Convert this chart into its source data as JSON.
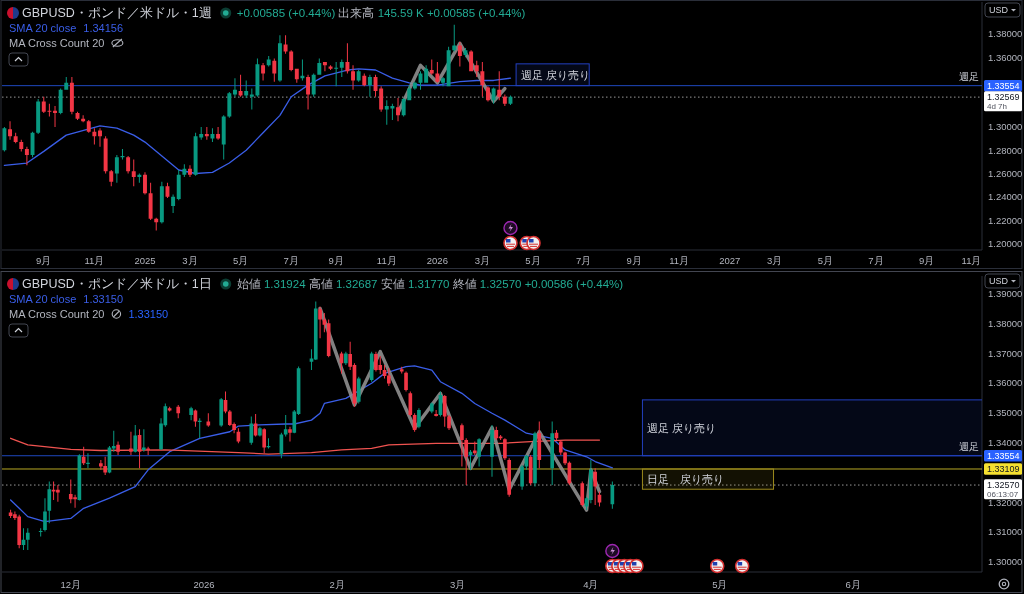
{
  "chart_data": [
    {
      "type": "candlestick",
      "title": "GBPUSD・ポンド／米ドル・1週",
      "subtitle": "+0.00585 (+0.44%) 出来高 145.59 K +0.00585 (+0.44%)",
      "x": [
        "2024-07-15",
        "2024-07-22",
        "2024-07-29",
        "2024-08-05",
        "2024-08-12",
        "2024-08-19",
        "2024-08-26",
        "2024-09-02",
        "2024-09-09",
        "2024-09-16",
        "2024-09-23",
        "2024-09-30",
        "2024-10-07",
        "2024-10-14",
        "2024-10-21",
        "2024-10-28",
        "2024-11-04",
        "2024-11-11",
        "2024-11-18",
        "2024-11-25",
        "2024-12-02",
        "2024-12-09",
        "2024-12-16",
        "2024-12-23",
        "2024-12-30",
        "2025-01-06",
        "2025-01-13",
        "2025-01-20",
        "2025-01-27",
        "2025-02-03",
        "2025-02-10",
        "2025-02-17",
        "2025-02-24",
        "2025-03-03",
        "2025-03-10",
        "2025-03-17",
        "2025-03-24",
        "2025-03-31",
        "2025-04-07",
        "2025-04-14",
        "2025-04-21",
        "2025-04-28",
        "2025-05-05",
        "2025-05-12",
        "2025-05-19",
        "2025-05-26",
        "2025-06-02",
        "2025-06-09",
        "2025-06-16",
        "2025-06-23",
        "2025-06-30",
        "2025-07-07",
        "2025-07-14",
        "2025-07-21",
        "2025-07-28",
        "2025-08-04",
        "2025-08-11",
        "2025-08-18",
        "2025-08-25",
        "2025-09-01",
        "2025-09-08",
        "2025-09-15",
        "2025-09-22",
        "2025-09-29",
        "2025-10-06",
        "2025-10-13",
        "2025-10-20",
        "2025-10-27",
        "2025-11-03",
        "2025-11-10",
        "2025-11-17",
        "2025-11-24",
        "2025-12-01",
        "2025-12-08",
        "2025-12-15",
        "2025-12-22",
        "2025-12-29",
        "2026-01-05",
        "2026-01-12",
        "2026-01-19",
        "2026-01-26",
        "2026-02-02",
        "2026-02-09",
        "2026-02-16",
        "2026-02-23",
        "2026-03-02",
        "2026-03-09",
        "2026-03-16",
        "2026-03-23",
        "2026-03-30",
        "2026-04-06"
      ],
      "ohlc": [
        [
          1.28,
          1.3,
          1.279,
          1.299
        ],
        [
          1.298,
          1.305,
          1.289,
          1.292
        ],
        [
          1.292,
          1.295,
          1.286,
          1.287
        ],
        [
          1.287,
          1.289,
          1.279,
          1.281
        ],
        [
          1.281,
          1.283,
          1.267,
          1.276
        ],
        [
          1.276,
          1.296,
          1.274,
          1.295
        ],
        [
          1.295,
          1.324,
          1.294,
          1.322
        ],
        [
          1.322,
          1.326,
          1.312,
          1.313
        ],
        [
          1.314,
          1.32,
          1.309,
          1.313
        ],
        [
          1.314,
          1.318,
          1.3,
          1.312
        ],
        [
          1.312,
          1.333,
          1.311,
          1.332
        ],
        [
          1.332,
          1.343,
          1.332,
          1.338
        ],
        [
          1.338,
          1.343,
          1.311,
          1.313
        ],
        [
          1.312,
          1.313,
          1.306,
          1.307
        ],
        [
          1.307,
          1.31,
          1.304,
          1.305
        ],
        [
          1.305,
          1.306,
          1.295,
          1.296
        ],
        [
          1.296,
          1.299,
          1.285,
          1.292
        ],
        [
          1.297,
          1.299,
          1.283,
          1.292
        ],
        [
          1.29,
          1.292,
          1.26,
          1.262
        ],
        [
          1.262,
          1.263,
          1.249,
          1.253
        ],
        [
          1.26,
          1.276,
          1.252,
          1.274
        ],
        [
          1.274,
          1.281,
          1.272,
          1.275
        ],
        [
          1.274,
          1.275,
          1.26,
          1.262
        ],
        [
          1.262,
          1.272,
          1.249,
          1.257
        ],
        [
          1.257,
          1.26,
          1.252,
          1.259
        ],
        [
          1.259,
          1.261,
          1.242,
          1.243
        ],
        [
          1.243,
          1.252,
          1.22,
          1.221
        ],
        [
          1.221,
          1.222,
          1.211,
          1.218
        ],
        [
          1.218,
          1.253,
          1.217,
          1.249
        ],
        [
          1.249,
          1.252,
          1.239,
          1.24
        ],
        [
          1.232,
          1.242,
          1.226,
          1.24
        ],
        [
          1.238,
          1.263,
          1.237,
          1.259
        ],
        [
          1.259,
          1.268,
          1.257,
          1.264
        ],
        [
          1.264,
          1.267,
          1.257,
          1.259
        ],
        [
          1.259,
          1.295,
          1.258,
          1.292
        ],
        [
          1.291,
          1.3,
          1.289,
          1.294
        ],
        [
          1.294,
          1.3,
          1.289,
          1.292
        ],
        [
          1.29,
          1.299,
          1.287,
          1.294
        ],
        [
          1.294,
          1.3,
          1.289,
          1.29
        ],
        [
          1.285,
          1.31,
          1.272,
          1.309
        ],
        [
          1.309,
          1.33,
          1.308,
          1.329
        ],
        [
          1.328,
          1.342,
          1.326,
          1.332
        ],
        [
          1.331,
          1.345,
          1.326,
          1.327
        ],
        [
          1.327,
          1.34,
          1.325,
          1.331
        ],
        [
          1.326,
          1.333,
          1.315,
          1.328
        ],
        [
          1.327,
          1.359,
          1.326,
          1.354
        ],
        [
          1.353,
          1.355,
          1.34,
          1.346
        ],
        [
          1.353,
          1.361,
          1.352,
          1.358
        ],
        [
          1.357,
          1.359,
          1.339,
          1.346
        ],
        [
          1.34,
          1.379,
          1.339,
          1.372
        ],
        [
          1.371,
          1.379,
          1.363,
          1.365
        ],
        [
          1.365,
          1.366,
          1.348,
          1.349
        ],
        [
          1.35,
          1.35,
          1.338,
          1.341
        ],
        [
          1.342,
          1.358,
          1.34,
          1.344
        ],
        [
          1.343,
          1.345,
          1.315,
          1.328
        ],
        [
          1.328,
          1.346,
          1.326,
          1.345
        ],
        [
          1.345,
          1.359,
          1.345,
          1.355
        ],
        [
          1.356,
          1.356,
          1.348,
          1.353
        ],
        [
          1.352,
          1.353,
          1.349,
          1.35
        ],
        [
          1.35,
          1.356,
          1.335,
          1.351
        ],
        [
          1.351,
          1.358,
          1.343,
          1.356
        ],
        [
          1.356,
          1.372,
          1.346,
          1.348
        ],
        [
          1.348,
          1.353,
          1.332,
          1.34
        ],
        [
          1.34,
          1.349,
          1.339,
          1.348
        ],
        [
          1.344,
          1.346,
          1.335,
          1.336
        ],
        [
          1.336,
          1.345,
          1.326,
          1.343
        ],
        [
          1.343,
          1.345,
          1.326,
          1.331
        ],
        [
          1.333,
          1.335,
          1.313,
          1.315
        ],
        [
          1.315,
          1.323,
          1.302,
          1.318
        ],
        [
          1.316,
          1.32,
          1.306,
          1.318
        ],
        [
          1.317,
          1.325,
          1.305,
          1.31
        ],
        [
          1.31,
          1.325,
          1.309,
          1.324
        ],
        [
          1.323,
          1.336,
          1.323,
          1.333
        ],
        [
          1.333,
          1.339,
          1.332,
          1.338
        ],
        [
          1.338,
          1.348,
          1.332,
          1.346
        ],
        [
          1.338,
          1.353,
          1.338,
          1.35
        ],
        [
          1.349,
          1.358,
          1.345,
          1.346
        ],
        [
          1.346,
          1.356,
          1.338,
          1.339
        ],
        [
          1.338,
          1.343,
          1.335,
          1.342
        ],
        [
          1.335,
          1.369,
          1.335,
          1.366
        ],
        [
          1.366,
          1.388,
          1.365,
          1.37
        ],
        [
          1.37,
          1.373,
          1.352,
          1.361
        ],
        [
          1.362,
          1.368,
          1.36,
          1.366
        ],
        [
          1.365,
          1.366,
          1.348,
          1.348
        ],
        [
          1.353,
          1.357,
          1.343,
          1.348
        ],
        [
          1.348,
          1.356,
          1.326,
          1.336
        ],
        [
          1.334,
          1.335,
          1.322,
          1.323
        ],
        [
          1.323,
          1.334,
          1.32,
          1.333
        ],
        [
          1.332,
          1.348,
          1.323,
          1.326
        ],
        [
          1.326,
          1.328,
          1.318,
          1.32
        ],
        [
          1.32,
          1.327,
          1.319,
          1.326
        ]
      ],
      "colors": [
        "#089981",
        "#f23645",
        "#f23645",
        "#f23645",
        "#f23645",
        "#089981",
        "#089981",
        "#f23645",
        "#f23645",
        "#f23645",
        "#089981",
        "#089981",
        "#f23645",
        "#f23645",
        "#f23645",
        "#f23645",
        "#f23645",
        "#f23645",
        "#f23645",
        "#f23645",
        "#089981",
        "#089981",
        "#f23645",
        "#f23645",
        "#089981",
        "#f23645",
        "#f23645",
        "#f23645",
        "#089981",
        "#f23645",
        "#089981",
        "#089981",
        "#089981",
        "#f23645",
        "#089981",
        "#089981",
        "#f23645",
        "#089981",
        "#f23645",
        "#089981",
        "#089981",
        "#089981",
        "#f23645",
        "#089981",
        "#089981",
        "#089981",
        "#f23645",
        "#089981",
        "#f23645",
        "#089981",
        "#f23645",
        "#f23645",
        "#f23645",
        "#089981",
        "#f23645",
        "#089981",
        "#089981",
        "#f23645",
        "#f23645",
        "#089981",
        "#089981",
        "#f23645",
        "#f23645",
        "#089981",
        "#f23645",
        "#089981",
        "#f23645",
        "#f23645",
        "#089981",
        "#089981",
        "#f23645",
        "#089981",
        "#089981",
        "#089981",
        "#089981",
        "#089981",
        "#f23645",
        "#f23645",
        "#089981",
        "#089981",
        "#089981",
        "#f23645",
        "#089981",
        "#f23645",
        "#f23645",
        "#f23645",
        "#f23645",
        "#089981",
        "#f23645",
        "#f23645",
        "#089981"
      ],
      "series": [
        {
          "name": "SMA 20 close",
          "type": "line",
          "color": "#3a5ee8",
          "x": [
            "2024-07-15",
            "2024-08-12",
            "2024-09-02",
            "2024-09-30",
            "2024-11-11",
            "2024-12-02",
            "2024-12-23",
            "2025-01-06",
            "2025-01-27",
            "2025-02-17",
            "2025-03-10",
            "2025-03-31",
            "2025-04-21",
            "2025-05-12",
            "2025-06-02",
            "2025-06-23",
            "2025-07-07",
            "2025-07-28",
            "2025-08-18",
            "2025-09-15",
            "2025-09-29",
            "2025-10-20",
            "2025-11-10",
            "2025-12-01",
            "2025-12-15",
            "2026-01-05",
            "2026-02-02",
            "2026-02-23",
            "2026-03-16",
            "2026-04-06"
          ],
          "values": [
            1.267,
            1.269,
            1.279,
            1.293,
            1.301,
            1.299,
            1.293,
            1.287,
            1.275,
            1.263,
            1.26,
            1.261,
            1.269,
            1.28,
            1.295,
            1.31,
            1.326,
            1.336,
            1.344,
            1.349,
            1.35,
            1.349,
            1.342,
            1.338,
            1.336,
            1.336,
            1.339,
            1.34,
            1.34,
            1.342
          ]
        },
        {
          "type": "line",
          "color": "#8f8f8f",
          "x": [
            "2025-11-17",
            "2025-12-15",
            "2026-01-05",
            "2026-02-02",
            "2026-03-16",
            "2026-03-30"
          ],
          "values": [
            1.312,
            1.353,
            1.338,
            1.372,
            1.322,
            1.333
          ]
        }
      ],
      "xlim": [
        "2024-07-12",
        "2027-11-14"
      ],
      "xticks": [
        {
          "value": "2024-09-02",
          "label": "9月"
        },
        {
          "value": "2024-11-04",
          "label": "11月"
        },
        {
          "value": "2025-01-06",
          "label": "2025"
        },
        {
          "value": "2025-03-03",
          "label": "3月"
        },
        {
          "value": "2025-05-05",
          "label": "5月"
        },
        {
          "value": "2025-07-07",
          "label": "7月"
        },
        {
          "value": "2025-09-01",
          "label": "9月"
        },
        {
          "value": "2025-11-03",
          "label": "11月"
        },
        {
          "value": "2026-01-05",
          "label": "2026"
        },
        {
          "value": "2026-03-02",
          "label": "3月"
        },
        {
          "value": "2026-05-04",
          "label": "5月"
        },
        {
          "value": "2026-07-06",
          "label": "7月"
        },
        {
          "value": "2026-09-07",
          "label": "9月"
        },
        {
          "value": "2026-11-02",
          "label": "11月"
        },
        {
          "value": "2027-01-04",
          "label": "2027"
        },
        {
          "value": "2027-03-01",
          "label": "3月"
        },
        {
          "value": "2027-05-03",
          "label": "5月"
        },
        {
          "value": "2027-07-05",
          "label": "7月"
        },
        {
          "value": "2027-09-06",
          "label": "9月"
        },
        {
          "value": "2027-11-01",
          "label": "11月"
        }
      ],
      "ylim": [
        1.1942,
        1.4075
      ],
      "yticks": [
        {
          "value": 1.2,
          "label": "1.20000"
        },
        {
          "value": 1.22,
          "label": "1.22000"
        },
        {
          "value": 1.24,
          "label": "1.24000"
        },
        {
          "value": 1.26,
          "label": "1.26000"
        },
        {
          "value": 1.28,
          "label": "1.28000"
        },
        {
          "value": 1.3,
          "label": "1.30000"
        },
        {
          "value": 1.36,
          "label": "1.36000"
        },
        {
          "value": 1.38,
          "label": "1.38000"
        }
      ],
      "ref_lines": [
        {
          "axis": "y",
          "value": 1.33554,
          "label": "1.33554",
          "color": "#2962ff"
        },
        {
          "axis": "y",
          "value": 1.32569,
          "label": "1.32569",
          "color": "#ffffff",
          "line_style": "dotted"
        }
      ],
      "bands": [
        {
          "axis": "y",
          "from": 1.33554,
          "to": 1.3543,
          "label": "週足 戻り売り",
          "color": "#2340c0"
        }
      ],
      "annotations": [
        "USD",
        "4d 7h",
        "1.34156",
        "MA Cross Count 20",
        {
          "text": "週足",
          "x": "2027-10-29",
          "y": 1.33554
        }
      ],
      "legend": "top left"
    },
    {
      "type": "candlestick",
      "title": "GBPUSD・ポンド／米ドル・1日",
      "subtitle": "始値 1.31924 高値 1.32687 安値 1.31770 終値 1.32570 +0.00586 (+0.44%)",
      "x": [
        "2025-11-17",
        "2025-11-18",
        "2025-11-19",
        "2025-11-20",
        "2025-11-21",
        "2025-11-24",
        "2025-11-25",
        "2025-11-26",
        "2025-11-27",
        "2025-11-28",
        "2025-12-01",
        "2025-12-02",
        "2025-12-03",
        "2025-12-04",
        "2025-12-05",
        "2025-12-08",
        "2025-12-09",
        "2025-12-10",
        "2025-12-11",
        "2025-12-12",
        "2025-12-15",
        "2025-12-16",
        "2025-12-17",
        "2025-12-18",
        "2025-12-19",
        "2025-12-22",
        "2025-12-23",
        "2025-12-24",
        "2025-12-26",
        "2025-12-29",
        "2025-12-30",
        "2025-12-31",
        "2026-01-02",
        "2026-01-05",
        "2026-01-06",
        "2026-01-07",
        "2026-01-08",
        "2026-01-09",
        "2026-01-12",
        "2026-01-13",
        "2026-01-14",
        "2026-01-15",
        "2026-01-16",
        "2026-01-19",
        "2026-01-20",
        "2026-01-21",
        "2026-01-22",
        "2026-01-23",
        "2026-01-26",
        "2026-01-27",
        "2026-01-28",
        "2026-01-29",
        "2026-01-30",
        "2026-02-02",
        "2026-02-03",
        "2026-02-04",
        "2026-02-05",
        "2026-02-06",
        "2026-02-09",
        "2026-02-10",
        "2026-02-11",
        "2026-02-12",
        "2026-02-13",
        "2026-02-16",
        "2026-02-17",
        "2026-02-18",
        "2026-02-19",
        "2026-02-20",
        "2026-02-23",
        "2026-02-24",
        "2026-02-25",
        "2026-02-26",
        "2026-02-27",
        "2026-03-02",
        "2026-03-03",
        "2026-03-04",
        "2026-03-05",
        "2026-03-06",
        "2026-03-09",
        "2026-03-10",
        "2026-03-11",
        "2026-03-12",
        "2026-03-13",
        "2026-03-16",
        "2026-03-17",
        "2026-03-18",
        "2026-03-19",
        "2026-03-20",
        "2026-03-23",
        "2026-03-24",
        "2026-03-25",
        "2026-03-26",
        "2026-03-27",
        "2026-03-30",
        "2026-03-31",
        "2026-04-01",
        "2026-04-02",
        "2026-04-03",
        "2026-04-06"
      ],
      "ohlc": [
        [
          1.3165,
          1.3174,
          1.3146,
          1.3153
        ],
        [
          1.3159,
          1.3168,
          1.314,
          1.3146
        ],
        [
          1.3151,
          1.3157,
          1.3045,
          1.3056
        ],
        [
          1.3056,
          1.3112,
          1.3039,
          1.3073
        ],
        [
          1.3073,
          1.3112,
          1.3039,
          1.3097
        ],
        [
          1.3099,
          1.3112,
          1.3084,
          1.3103
        ],
        [
          1.3106,
          1.3213,
          1.3101,
          1.3168
        ],
        [
          1.3171,
          1.3269,
          1.3129,
          1.3243
        ],
        [
          1.3241,
          1.3269,
          1.3207,
          1.3235
        ],
        [
          1.3241,
          1.3257,
          1.3201,
          1.3232
        ],
        [
          1.3227,
          1.3276,
          1.3196,
          1.3209
        ],
        [
          1.3216,
          1.3224,
          1.3181,
          1.3209
        ],
        [
          1.3207,
          1.336,
          1.3205,
          1.3356
        ],
        [
          1.3352,
          1.3386,
          1.3324,
          1.333
        ],
        [
          1.3328,
          1.3364,
          1.3313,
          1.3332
        ],
        [
          1.333,
          1.3341,
          1.3308,
          1.3319
        ],
        [
          1.3321,
          1.3352,
          1.3291,
          1.3299
        ],
        [
          1.3299,
          1.3388,
          1.3297,
          1.3383
        ],
        [
          1.338,
          1.3439,
          1.3369,
          1.3388
        ],
        [
          1.3392,
          1.3403,
          1.3358,
          1.3369
        ],
        [
          1.338,
          1.3436,
          1.3358,
          1.3369
        ],
        [
          1.3369,
          1.3459,
          1.3366,
          1.3423
        ],
        [
          1.3425,
          1.3444,
          1.3313,
          1.3369
        ],
        [
          1.3375,
          1.3444,
          1.3369,
          1.3383
        ],
        [
          1.338,
          1.3386,
          1.3358,
          1.3375
        ],
        [
          1.3377,
          1.3481,
          1.3375,
          1.3464
        ],
        [
          1.3458,
          1.3531,
          1.3453,
          1.3522
        ],
        [
          1.3515,
          1.352,
          1.3504,
          1.3507
        ],
        [
          1.352,
          1.3526,
          1.3481,
          1.3498
        ],
        [
          1.3492,
          1.352,
          1.3475,
          1.3515
        ],
        [
          1.3507,
          1.3511,
          1.3453,
          1.347
        ],
        [
          1.3469,
          1.3481,
          1.3414,
          1.3473
        ],
        [
          1.347,
          1.3498,
          1.3453,
          1.3457
        ],
        [
          1.3457,
          1.3549,
          1.3453,
          1.3545
        ],
        [
          1.3543,
          1.3571,
          1.3498,
          1.3504
        ],
        [
          1.3504,
          1.3509,
          1.3455,
          1.3459
        ],
        [
          1.3462,
          1.3467,
          1.3431,
          1.3442
        ],
        [
          1.3436,
          1.3448,
          1.3397,
          1.3403
        ],
        [
          1.3399,
          1.3487,
          1.3392,
          1.3464
        ],
        [
          1.3464,
          1.3496,
          1.342,
          1.3423
        ],
        [
          1.3423,
          1.3453,
          1.342,
          1.3448
        ],
        [
          1.3444,
          1.3448,
          1.3364,
          1.3383
        ],
        [
          1.3384,
          1.3414,
          1.338,
          1.3388
        ],
        [
          1.336,
          1.3433,
          1.3347,
          1.3427
        ],
        [
          1.3427,
          1.3492,
          1.342,
          1.3444
        ],
        [
          1.3444,
          1.3453,
          1.3403,
          1.3433
        ],
        [
          1.3433,
          1.3509,
          1.3431,
          1.3504
        ],
        [
          1.3496,
          1.3655,
          1.3492,
          1.3649
        ],
        [
          1.3671,
          1.3713,
          1.3643,
          1.3682
        ],
        [
          1.3679,
          1.3873,
          1.3677,
          1.385
        ],
        [
          1.3847,
          1.3856,
          1.375,
          1.3813
        ],
        [
          1.3813,
          1.3835,
          1.377,
          1.3795
        ],
        [
          1.38,
          1.3813,
          1.3686,
          1.369
        ],
        [
          1.3699,
          1.3705,
          1.3632,
          1.3666
        ],
        [
          1.3666,
          1.3705,
          1.366,
          1.3699
        ],
        [
          1.3697,
          1.3738,
          1.3643,
          1.3654
        ],
        [
          1.366,
          1.3666,
          1.352,
          1.3531
        ],
        [
          1.3537,
          1.3621,
          1.3531,
          1.3615
        ],
        [
          1.361,
          1.3705,
          1.3604,
          1.3699
        ],
        [
          1.3697,
          1.3705,
          1.3638,
          1.3643
        ],
        [
          1.366,
          1.369,
          1.363,
          1.3643
        ],
        [
          1.3643,
          1.366,
          1.3615,
          1.3623
        ],
        [
          1.3625,
          1.365,
          1.359,
          1.3598
        ],
        [
          1.3646,
          1.3654,
          1.3632,
          1.3638
        ],
        [
          1.3634,
          1.3638,
          1.3571,
          1.3576
        ],
        [
          1.3565,
          1.3571,
          1.3487,
          1.3492
        ],
        [
          1.3492,
          1.3498,
          1.3436,
          1.3442
        ],
        [
          1.3453,
          1.3515,
          1.3448,
          1.3509
        ],
        [
          1.3504,
          1.3534,
          1.3498,
          1.3531
        ],
        [
          1.3496,
          1.3509,
          1.3487,
          1.3489
        ],
        [
          1.3492,
          1.3571,
          1.3487,
          1.3559
        ],
        [
          1.3556,
          1.3559,
          1.3453,
          1.3487
        ],
        [
          1.3487,
          1.3492,
          1.3442,
          1.3448
        ],
        [
          1.3458,
          1.3464,
          1.3319,
          1.3408
        ],
        [
          1.3408,
          1.3414,
          1.3257,
          1.3352
        ],
        [
          1.3358,
          1.3375,
          1.3308,
          1.3369
        ],
        [
          1.3373,
          1.3403,
          1.3358,
          1.3364
        ],
        [
          1.3352,
          1.3414,
          1.3319,
          1.3411
        ],
        [
          1.3352,
          1.3459,
          1.3285,
          1.3442
        ],
        [
          1.3442,
          1.3453,
          1.3408,
          1.3414
        ],
        [
          1.342,
          1.3425,
          1.3408,
          1.3414
        ],
        [
          1.3411,
          1.3414,
          1.3341,
          1.3347
        ],
        [
          1.3341,
          1.3347,
          1.3218,
          1.3224
        ],
        [
          1.3252,
          1.3324,
          1.3241,
          1.3319
        ],
        [
          1.3319,
          1.3358,
          1.3308,
          1.3355
        ],
        [
          1.3352,
          1.3358,
          1.3257,
          1.3263
        ],
        [
          1.3263,
          1.3436,
          1.3252,
          1.3431
        ],
        [
          1.3431,
          1.347,
          1.3313,
          1.3341
        ],
        [
          1.3313,
          1.347,
          1.3257,
          1.3431
        ],
        [
          1.3433,
          1.3442,
          1.3408,
          1.3414
        ],
        [
          1.3403,
          1.3408,
          1.3358,
          1.3366
        ],
        [
          1.3366,
          1.3369,
          1.3324,
          1.333
        ],
        [
          1.3332,
          1.3336,
          1.3257,
          1.3263
        ],
        [
          1.3263,
          1.3269,
          1.3185,
          1.319
        ],
        [
          1.3185,
          1.3218,
          1.3173,
          1.3213
        ],
        [
          1.3207,
          1.3341,
          1.3196,
          1.3308
        ],
        [
          1.3302,
          1.3313,
          1.319,
          1.3252
        ],
        [
          1.3224,
          1.3235,
          1.3185,
          1.3198
        ],
        [
          1.31924,
          1.32687,
          1.3177,
          1.3257
        ]
      ],
      "colors": [
        "#f23645",
        "#f23645",
        "#f23645",
        "#089981",
        "#089981",
        "#089981",
        "#089981",
        "#089981",
        "#f23645",
        "#f23645",
        "#f23645",
        "#f23645",
        "#089981",
        "#f23645",
        "#089981",
        "#f23645",
        "#f23645",
        "#089981",
        "#089981",
        "#f23645",
        "#f23645",
        "#089981",
        "#f23645",
        "#089981",
        "#f23645",
        "#089981",
        "#089981",
        "#f23645",
        "#f23645",
        "#089981",
        "#f23645",
        "#089981",
        "#f23645",
        "#089981",
        "#f23645",
        "#f23645",
        "#f23645",
        "#f23645",
        "#089981",
        "#f23645",
        "#089981",
        "#f23645",
        "#089981",
        "#089981",
        "#089981",
        "#f23645",
        "#089981",
        "#089981",
        "#089981",
        "#089981",
        "#f23645",
        "#f23645",
        "#f23645",
        "#f23645",
        "#089981",
        "#f23645",
        "#f23645",
        "#089981",
        "#089981",
        "#f23645",
        "#f23645",
        "#f23645",
        "#f23645",
        "#f23645",
        "#f23645",
        "#f23645",
        "#f23645",
        "#089981",
        "#089981",
        "#f23645",
        "#089981",
        "#f23645",
        "#f23645",
        "#f23645",
        "#f23645",
        "#089981",
        "#f23645",
        "#089981",
        "#089981",
        "#f23645",
        "#f23645",
        "#f23645",
        "#f23645",
        "#089981",
        "#089981",
        "#f23645",
        "#089981",
        "#f23645",
        "#089981",
        "#f23645",
        "#f23645",
        "#f23645",
        "#f23645",
        "#f23645",
        "#089981",
        "#089981",
        "#f23645",
        "#f23645",
        "#089981"
      ],
      "series": [
        {
          "name": "SMA 20 close",
          "type": "line",
          "color": "#3a5ee8",
          "x": [
            "2025-11-17",
            "2025-11-19",
            "2025-11-21",
            "2025-11-25",
            "2025-12-01",
            "2025-12-04",
            "2025-12-10",
            "2025-12-16",
            "2025-12-19",
            "2025-12-24",
            "2025-12-31",
            "2026-01-07",
            "2026-01-09",
            "2026-01-14",
            "2026-01-20",
            "2026-01-22",
            "2026-01-26",
            "2026-01-28",
            "2026-01-29",
            "2026-02-03",
            "2026-02-09",
            "2026-02-12",
            "2026-02-17",
            "2026-02-19",
            "2026-02-23",
            "2026-02-25",
            "2026-03-02",
            "2026-03-05",
            "2026-03-09",
            "2026-03-12",
            "2026-03-17",
            "2026-03-23",
            "2026-03-26",
            "2026-03-31",
            "2026-04-02",
            "2026-04-06"
          ],
          "values": [
            1.3207,
            1.3179,
            1.3151,
            1.3134,
            1.3145,
            1.3179,
            1.3213,
            1.3252,
            1.3308,
            1.3369,
            1.3414,
            1.3436,
            1.3455,
            1.3459,
            1.3462,
            1.3462,
            1.3475,
            1.3498,
            1.3531,
            1.3548,
            1.3599,
            1.3632,
            1.3655,
            1.3657,
            1.3643,
            1.3604,
            1.3565,
            1.3531,
            1.3498,
            1.3475,
            1.3431,
            1.3414,
            1.3375,
            1.3352,
            1.3336,
            1.3315
          ]
        },
        {
          "type": "line",
          "color": "#ef5350",
          "x": [
            "2025-11-17",
            "2025-11-21",
            "2025-12-01",
            "2025-12-08",
            "2025-12-23",
            "2026-01-09",
            "2026-01-16",
            "2026-01-26",
            "2026-02-02",
            "2026-02-09",
            "2026-02-13",
            "2026-02-24",
            "2026-03-11",
            "2026-03-18",
            "2026-03-26",
            "2026-04-03"
          ],
          "values": [
            1.3414,
            1.3392,
            1.3377,
            1.3373,
            1.3375,
            1.3366,
            1.3361,
            1.3366,
            1.3375,
            1.338,
            1.3392,
            1.3397,
            1.3397,
            1.3403,
            1.3408,
            1.3408
          ]
        },
        {
          "type": "line",
          "color": "#8f8f8f",
          "x": [
            "2026-01-28",
            "2026-02-05",
            "2026-02-11",
            "2026-02-19",
            "2026-02-25",
            "2026-03-04",
            "2026-03-09",
            "2026-03-13",
            "2026-03-20",
            "2026-03-31",
            "2026-04-01",
            "2026-04-03"
          ],
          "values": [
            1.385,
            1.3526,
            1.3705,
            1.3448,
            1.3565,
            1.3313,
            1.345,
            1.3241,
            1.3436,
            1.3173,
            1.3308,
            1.3235
          ]
        }
      ],
      "xlim": [
        "2025-11-15",
        "2026-07-01"
      ],
      "xticks": [
        {
          "value": "2025-12-01",
          "label": "12月"
        },
        {
          "value": "2026-01-01",
          "label": "2026"
        },
        {
          "value": "2026-02-01",
          "label": "2月"
        },
        {
          "value": "2026-03-01",
          "label": "3月"
        },
        {
          "value": "2026-04-01",
          "label": "4月"
        },
        {
          "value": "2026-05-01",
          "label": "5月"
        },
        {
          "value": "2026-06-01",
          "label": "6月"
        }
      ],
      "ylim": [
        1.2965,
        1.3959
      ],
      "yticks": [
        {
          "value": 1.3,
          "label": "1.30000"
        },
        {
          "value": 1.31,
          "label": "1.31000"
        },
        {
          "value": 1.32,
          "label": "1.32000"
        },
        {
          "value": 1.34,
          "label": "1.34000"
        },
        {
          "value": 1.35,
          "label": "1.35000"
        },
        {
          "value": 1.36,
          "label": "1.36000"
        },
        {
          "value": 1.37,
          "label": "1.37000"
        },
        {
          "value": 1.38,
          "label": "1.38000"
        },
        {
          "value": 1.39,
          "label": "1.39000"
        }
      ],
      "ref_lines": [
        {
          "axis": "y",
          "value": 1.33554,
          "label": "1.33554",
          "color": "#2962ff"
        },
        {
          "axis": "y",
          "value": 1.33109,
          "label": "1.33109",
          "color": "#f5e030"
        },
        {
          "axis": "y",
          "value": 1.3257,
          "label": "1.32570",
          "color": "#ffffff",
          "line_style": "dotted"
        }
      ],
      "bands": [
        {
          "axis": "y",
          "from": 1.33554,
          "to": 1.3543,
          "label": "週足 戻り売り",
          "color": "#2340c0"
        },
        {
          "axis": "y",
          "from": 1.3243,
          "to": 1.33109,
          "label": "日足　戻り売り",
          "color": "#9c8a1c"
        }
      ],
      "annotations": [
        "USD",
        "06:13:07",
        "1.33150",
        "MA Cross Count 20",
        "1.33150",
        {
          "text": "週足",
          "x": "2026-06-28",
          "y": 1.33554
        }
      ],
      "legend": "top left"
    }
  ]
}
